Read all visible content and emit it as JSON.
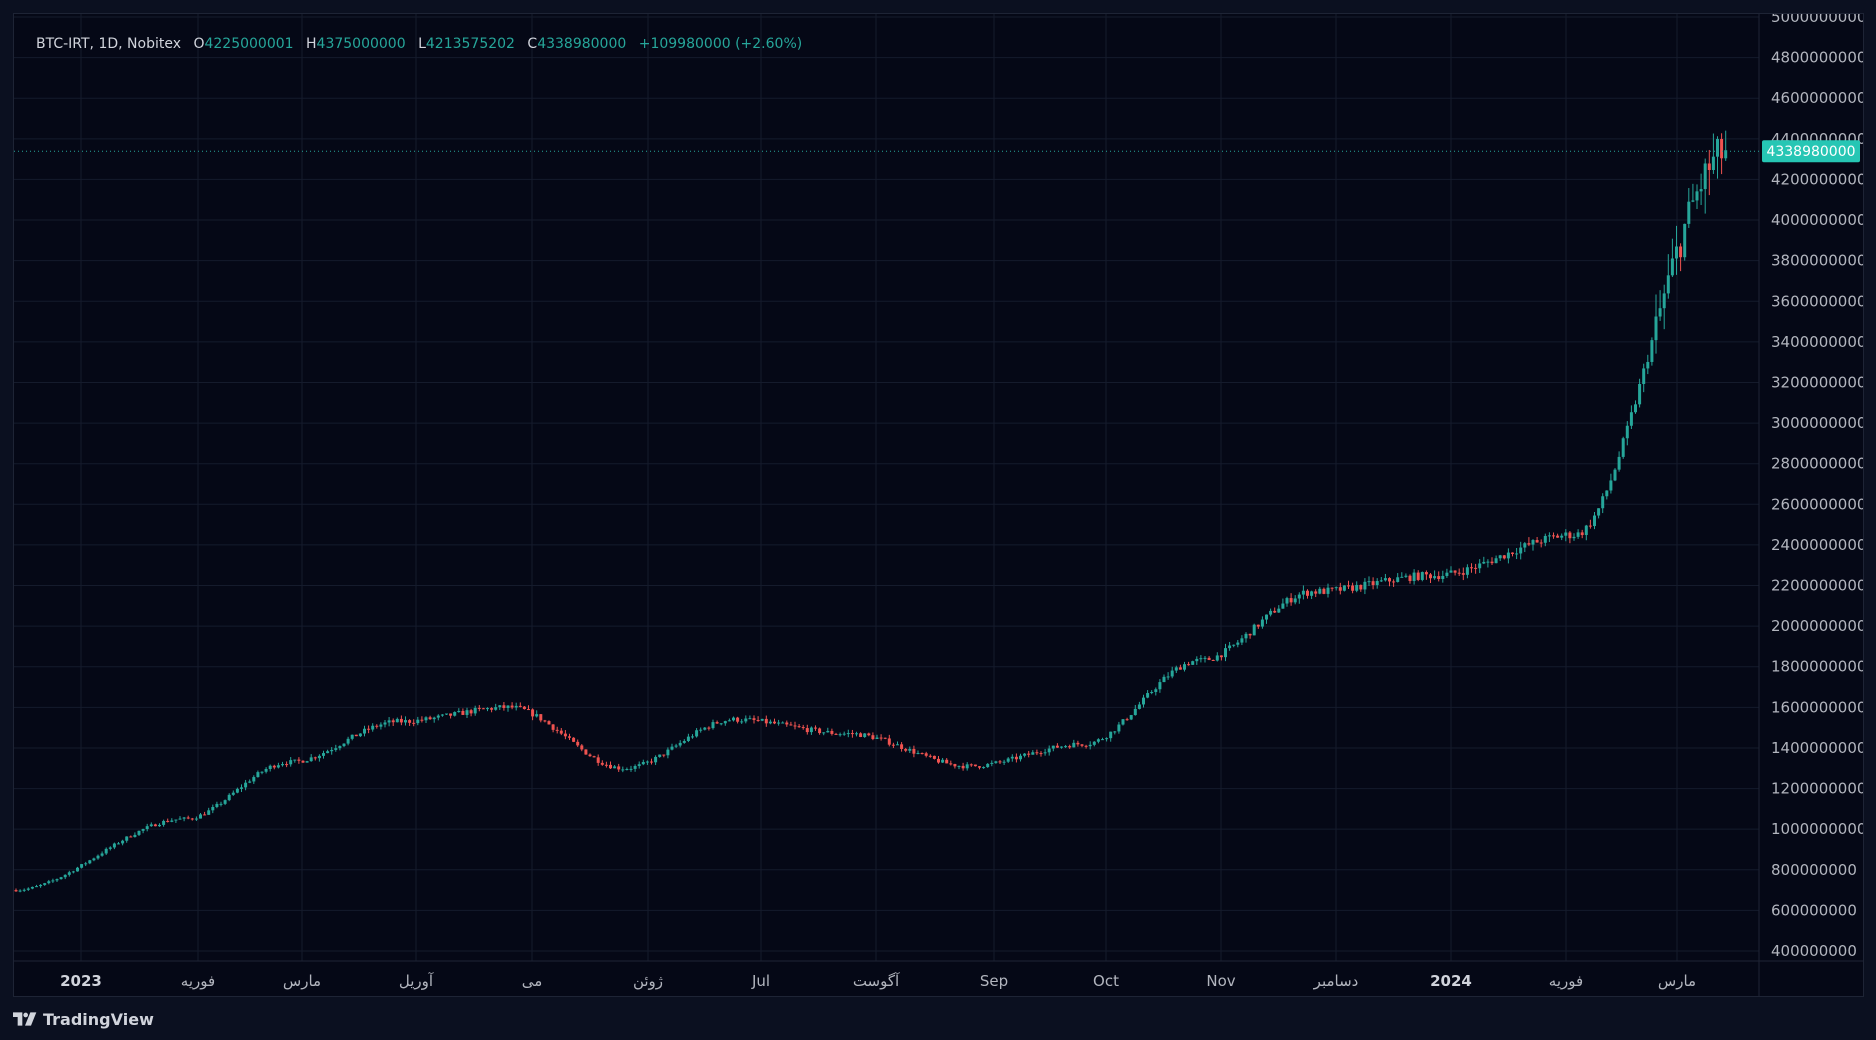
{
  "legend": {
    "symbol": "BTC-IRT, 1D, Nobitex",
    "open_key": "O",
    "open": "4225000001",
    "high_key": "H",
    "high": "4375000000",
    "low_key": "L",
    "low": "4213575202",
    "close_key": "C",
    "close": "4338980000",
    "change": "+109980000 (+2.60%)"
  },
  "brand": {
    "name": "TradingView",
    "icon": "tradingview-logo-icon"
  },
  "colors": {
    "up": "#26a69a",
    "down": "#ef5350",
    "price_label_bg": "#26c6b4",
    "grid": "#151b2c",
    "background": "#050816"
  },
  "chart_data": {
    "type": "candlestick",
    "title": "BTC-IRT, 1D, Nobitex",
    "y_axis_position": "right",
    "ylim": [
      400000000,
      5000000000
    ],
    "y_ticks": [
      400000000,
      600000000,
      800000000,
      1000000000,
      1200000000,
      1400000000,
      1600000000,
      1800000000,
      2000000000,
      2200000000,
      2400000000,
      2600000000,
      2800000000,
      3000000000,
      3200000000,
      3400000000,
      3600000000,
      3800000000,
      4000000000,
      4200000000,
      4400000000,
      4600000000,
      4800000000,
      5000000000
    ],
    "x_ticks": [
      {
        "label": "2023",
        "bold": true
      },
      {
        "label": "فوریه",
        "bold": false
      },
      {
        "label": "مارس",
        "bold": false
      },
      {
        "label": "آوریل",
        "bold": false
      },
      {
        "label": "می",
        "bold": false
      },
      {
        "label": "ژوئن",
        "bold": false
      },
      {
        "label": "Jul",
        "bold": false
      },
      {
        "label": "آگوست",
        "bold": false
      },
      {
        "label": "Sep",
        "bold": false
      },
      {
        "label": "Oct",
        "bold": false
      },
      {
        "label": "Nov",
        "bold": false
      },
      {
        "label": "دسامبر",
        "bold": false
      },
      {
        "label": "2024",
        "bold": true
      },
      {
        "label": "فوریه",
        "bold": false
      },
      {
        "label": "مارس",
        "bold": false
      }
    ],
    "grid": true,
    "last_price": 4338980000,
    "last_price_label": "4338980000",
    "close_trajectory_monthly": [
      {
        "period": "2023-01",
        "close": 700000000
      },
      {
        "period": "2023-02",
        "close": 1050000000
      },
      {
        "period": "2023-03",
        "close": 1330000000
      },
      {
        "period": "2023-04",
        "close": 1530000000
      },
      {
        "period": "2023-05",
        "close": 1600000000
      },
      {
        "period": "2023-06",
        "close": 1300000000
      },
      {
        "period": "2023-07",
        "close": 1540000000
      },
      {
        "period": "2023-08",
        "close": 1470000000
      },
      {
        "period": "2023-09",
        "close": 1310000000
      },
      {
        "period": "2023-10",
        "close": 1420000000
      },
      {
        "period": "2023-11",
        "close": 1830000000
      },
      {
        "period": "2023-12",
        "close": 2170000000
      },
      {
        "period": "2024-01",
        "close": 2250000000
      },
      {
        "period": "2024-02",
        "close": 2450000000
      },
      {
        "period": "2024-03",
        "close": 4338980000
      }
    ]
  }
}
